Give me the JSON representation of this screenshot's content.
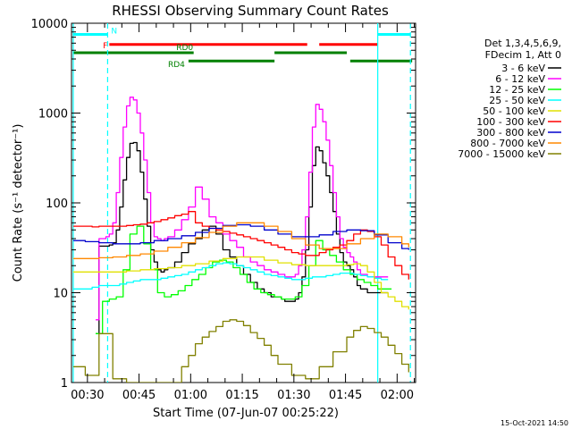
{
  "chart_data": {
    "type": "line",
    "title": "RHESSI Observing Summary Count Rates",
    "xlabel": "Start Time (07-Jun-07 00:25:22)",
    "ylabel": "Count Rate (s⁻¹ detector⁻¹)",
    "x_unit": "minutes after 00:25:22",
    "xlim": [
      0,
      100
    ],
    "ylim": [
      1,
      10000
    ],
    "y_scale": "log",
    "xticks": [
      {
        "value": 4.63,
        "label": "00:30"
      },
      {
        "value": 19.63,
        "label": "00:45"
      },
      {
        "value": 34.63,
        "label": "01:00"
      },
      {
        "value": 49.63,
        "label": "01:15"
      },
      {
        "value": 64.63,
        "label": "01:30"
      },
      {
        "value": 79.63,
        "label": "01:45"
      },
      {
        "value": 94.63,
        "label": "02:00"
      }
    ],
    "yticks": [
      {
        "value": 1,
        "label": "1"
      },
      {
        "value": 10,
        "label": "10"
      },
      {
        "value": 100,
        "label": "100"
      },
      {
        "value": 1000,
        "label": "1000"
      },
      {
        "value": 10000,
        "label": "10000"
      }
    ],
    "legend_header": [
      "Det 1,3,4,5,6,9,",
      "FDecim 1, Att 0"
    ],
    "legend_position": "right",
    "series": [
      {
        "name": "3 - 6 keV",
        "color": "#000000",
        "x": [
          7,
          8,
          9,
          10,
          11,
          12,
          13,
          14,
          15,
          16,
          17,
          18,
          19,
          20,
          21,
          22,
          23,
          24,
          25,
          26,
          27,
          28,
          30,
          32,
          34,
          36,
          38,
          40,
          42,
          44,
          46,
          48,
          50,
          52,
          54,
          56,
          58,
          60,
          61,
          62,
          63,
          64,
          65,
          66,
          67,
          68,
          69,
          70,
          71,
          72,
          73,
          74,
          75,
          76,
          77,
          78,
          79,
          80,
          81,
          82,
          83,
          84,
          86,
          88,
          90,
          92
        ],
        "y": [
          3.5,
          33,
          33,
          33,
          34,
          36,
          50,
          90,
          180,
          320,
          460,
          470,
          380,
          220,
          110,
          55,
          30,
          22,
          18,
          17,
          18,
          19,
          22,
          28,
          35,
          40,
          50,
          55,
          45,
          30,
          25,
          20,
          16,
          13,
          11,
          10,
          9,
          9,
          8.5,
          8,
          8,
          8,
          8.5,
          10,
          15,
          30,
          90,
          260,
          420,
          380,
          280,
          200,
          130,
          80,
          45,
          28,
          22,
          20,
          18,
          15,
          12,
          11,
          10,
          10,
          10,
          10
        ]
      },
      {
        "name": "6 - 12 keV",
        "color": "#ff00ff",
        "x": [
          7,
          8,
          9,
          10,
          11,
          12,
          13,
          14,
          15,
          16,
          17,
          18,
          19,
          20,
          21,
          22,
          23,
          24,
          25,
          26,
          27,
          28,
          30,
          32,
          34,
          36,
          38,
          40,
          42,
          44,
          46,
          48,
          50,
          52,
          54,
          56,
          58,
          60,
          61,
          62,
          63,
          64,
          65,
          66,
          67,
          68,
          69,
          70,
          71,
          72,
          73,
          74,
          75,
          76,
          77,
          78,
          79,
          80,
          81,
          82,
          83,
          84,
          86,
          88,
          90,
          92
        ],
        "y": [
          5,
          40,
          40,
          42,
          45,
          60,
          130,
          320,
          700,
          1200,
          1500,
          1400,
          1000,
          600,
          300,
          130,
          60,
          42,
          40,
          38,
          40,
          42,
          50,
          65,
          90,
          150,
          110,
          70,
          60,
          45,
          38,
          32,
          25,
          22,
          20,
          18,
          17,
          16,
          16,
          15,
          15,
          15,
          16,
          20,
          30,
          70,
          220,
          700,
          1250,
          1100,
          800,
          500,
          260,
          130,
          70,
          40,
          32,
          28,
          25,
          22,
          18,
          16,
          15,
          15,
          15,
          15
        ]
      },
      {
        "name": "12 - 25 keV",
        "color": "#00ff00",
        "x": [
          7,
          9,
          11,
          13,
          15,
          17,
          19,
          21,
          23,
          25,
          27,
          29,
          31,
          33,
          35,
          37,
          39,
          41,
          43,
          45,
          47,
          49,
          51,
          53,
          55,
          57,
          59,
          61,
          63,
          65,
          67,
          69,
          71,
          73,
          75,
          77,
          79,
          81,
          83,
          85,
          87,
          89,
          91,
          93
        ],
        "y": [
          3.5,
          8,
          8.5,
          9,
          18,
          45,
          55,
          35,
          18,
          10,
          9,
          9.5,
          10.5,
          12,
          14,
          16,
          19,
          22,
          23,
          22,
          19,
          16,
          13,
          11,
          10,
          9.5,
          9,
          8.5,
          8.5,
          9,
          12,
          20,
          38,
          30,
          26,
          22,
          18,
          16,
          14,
          13,
          12,
          11,
          11,
          11
        ]
      },
      {
        "name": "25 - 50 keV",
        "color": "#00ffff",
        "x": [
          0.5,
          2,
          4,
          6,
          8,
          10,
          12,
          14,
          16,
          18,
          20,
          22,
          24,
          26,
          28,
          30,
          32,
          34,
          36,
          38,
          40,
          42,
          44,
          46,
          48,
          50,
          52,
          54,
          56,
          58,
          60,
          62,
          64,
          66,
          68,
          70,
          72,
          74,
          76,
          78,
          80,
          82,
          84,
          86,
          88,
          90,
          92
        ],
        "y": [
          11,
          11,
          11,
          11.5,
          12,
          12,
          12,
          12.5,
          13,
          13.5,
          14,
          14,
          14,
          14.5,
          15,
          15.5,
          16,
          17,
          18,
          19,
          20,
          21,
          21.5,
          21,
          20,
          19,
          18,
          17,
          16,
          15.5,
          15,
          14.5,
          14,
          14,
          14.5,
          15,
          15,
          15.5,
          16,
          16.5,
          16.5,
          16,
          15.5,
          15,
          14.5,
          14,
          14
        ]
      },
      {
        "name": "50 - 100 keV",
        "color": "#e0e000",
        "x": [
          0.5,
          4,
          8,
          12,
          16,
          20,
          24,
          28,
          32,
          36,
          40,
          44,
          48,
          52,
          56,
          60,
          64,
          68,
          72,
          76,
          80,
          82,
          84,
          86,
          88,
          90,
          92,
          94,
          96,
          98
        ],
        "y": [
          17,
          17,
          17,
          17,
          17.5,
          18,
          18.5,
          19,
          20,
          21,
          22.5,
          24,
          25,
          25,
          23,
          21.5,
          20.5,
          20,
          20,
          20,
          20.5,
          21,
          20,
          17,
          13,
          10,
          9,
          8,
          7,
          6.5
        ]
      },
      {
        "name": "100 - 300 keV",
        "color": "#ff0000",
        "x": [
          0.5,
          2,
          4,
          6,
          8,
          10,
          12,
          14,
          16,
          18,
          20,
          22,
          24,
          26,
          28,
          30,
          32,
          34,
          36,
          38,
          40,
          42,
          44,
          46,
          48,
          50,
          52,
          54,
          56,
          58,
          60,
          62,
          64,
          66,
          68,
          70,
          72,
          74,
          76,
          78,
          80,
          82,
          84,
          86,
          88,
          90,
          92,
          94,
          96,
          98
        ],
        "y": [
          55,
          55,
          55,
          54,
          55,
          55,
          55,
          55,
          56,
          57,
          58,
          60,
          62,
          65,
          68,
          72,
          75,
          80,
          60,
          55,
          52,
          50,
          48,
          46,
          44,
          42,
          40,
          38,
          36,
          34,
          32,
          30,
          28,
          27,
          26,
          26,
          28,
          30,
          32,
          34,
          38,
          45,
          50,
          48,
          42,
          34,
          25,
          20,
          16,
          14
        ]
      },
      {
        "name": "300 - 800 keV",
        "color": "#0000cc",
        "x": [
          0.5,
          4,
          8,
          12,
          16,
          20,
          24,
          28,
          32,
          36,
          40,
          44,
          48,
          52,
          56,
          60,
          64,
          68,
          72,
          76,
          80,
          84,
          88,
          92,
          96,
          98
        ],
        "y": [
          38,
          37,
          36,
          35,
          35,
          36,
          38,
          40,
          43,
          47,
          52,
          56,
          57,
          55,
          50,
          45,
          42,
          42,
          44,
          48,
          50,
          49,
          44,
          36,
          31,
          30
        ]
      },
      {
        "name": "800 - 7000 keV",
        "color": "#ff8800",
        "x": [
          0.5,
          4,
          8,
          12,
          16,
          20,
          24,
          28,
          32,
          36,
          40,
          44,
          48,
          52,
          56,
          60,
          64,
          68,
          72,
          76,
          80,
          84,
          88,
          92,
          96,
          98
        ],
        "y": [
          24,
          24,
          24.5,
          25,
          26,
          27,
          29,
          32,
          36,
          41,
          47,
          55,
          60,
          60,
          55,
          48,
          40,
          34,
          31,
          31,
          35,
          40,
          45,
          42,
          35,
          32
        ]
      },
      {
        "name": "7000 - 15000 keV",
        "color": "#808000",
        "x": [
          0.5,
          4,
          8,
          12,
          16,
          20,
          24,
          28,
          32,
          34,
          36,
          38,
          40,
          42,
          44,
          46,
          48,
          50,
          52,
          54,
          56,
          58,
          60,
          64,
          68,
          72,
          76,
          80,
          82,
          84,
          86,
          88,
          90,
          92,
          94,
          96,
          98
        ],
        "y": [
          1.5,
          1.2,
          3.5,
          1.1,
          1,
          1,
          1,
          1,
          1.5,
          2,
          2.7,
          3.2,
          3.7,
          4.2,
          4.8,
          5,
          4.8,
          4.3,
          3.6,
          3.1,
          2.6,
          2,
          1.6,
          1.2,
          1.1,
          1.5,
          2.2,
          3.2,
          3.8,
          4.2,
          4.0,
          3.6,
          3.2,
          2.6,
          2.1,
          1.6,
          1.3
        ]
      }
    ],
    "segments": [
      {
        "label": "N",
        "color": "#00ffff",
        "y_level": 7500,
        "spans": [
          [
            0.5,
            10.5
          ],
          [
            89,
            98.5
          ]
        ]
      },
      {
        "label": "F",
        "color": "#ff0000",
        "y_level": 5800,
        "spans": [
          [
            11,
            68.5
          ],
          [
            72,
            89
          ]
        ]
      },
      {
        "label": "RD0",
        "color": "#008000",
        "y_level": 4700,
        "spans": [
          [
            0.5,
            35.5
          ],
          [
            59,
            80
          ]
        ]
      },
      {
        "label": "RD4",
        "color": "#008000",
        "y_level": 3800,
        "spans": [
          [
            34,
            59
          ],
          [
            81,
            99
          ]
        ]
      }
    ],
    "vlines": [
      {
        "x": 0.5,
        "color": "#00ffff",
        "style": "solid"
      },
      {
        "x": 10.5,
        "color": "#00ffff",
        "style": "dashed"
      },
      {
        "x": 89,
        "color": "#00ffff",
        "style": "solid"
      },
      {
        "x": 98.5,
        "color": "#00ffff",
        "style": "dashed"
      }
    ]
  },
  "footer": {
    "timestamp": "15-Oct-2021 14:50"
  }
}
